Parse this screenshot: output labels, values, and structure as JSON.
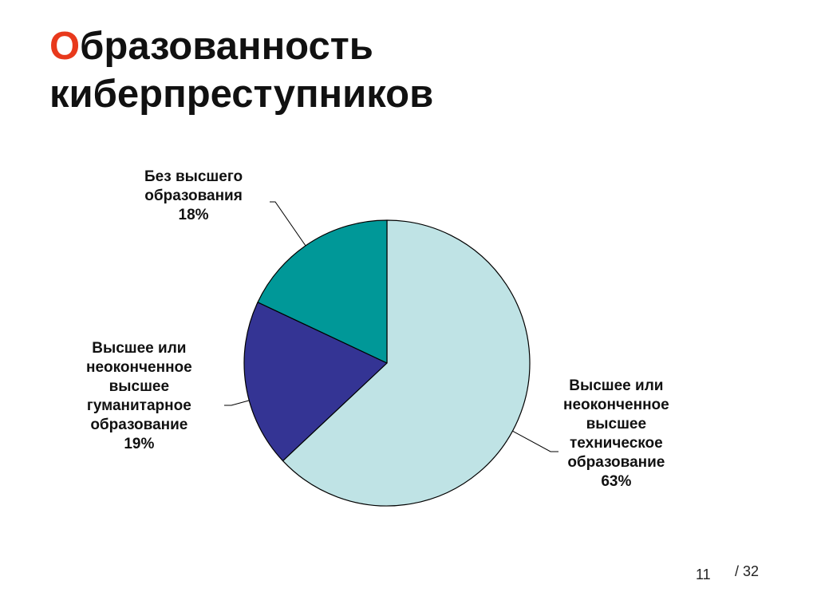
{
  "slide": {
    "title_first_letter": "О",
    "title_rest_line1": "бразованность",
    "title_line2": "киберпреступников",
    "number": "11",
    "total": "/ 32"
  },
  "chart_data": {
    "type": "pie",
    "title": "",
    "start_angle_deg": 0,
    "direction": "clockwise",
    "slices": [
      {
        "label_lines": [
          "Высшее или",
          "неоконченное",
          "высшее",
          "техническое",
          "образование"
        ],
        "value": 63,
        "value_label": "63%",
        "color": "#bfe3e5"
      },
      {
        "label_lines": [
          "Высшее или",
          "неоконченное",
          "высшее",
          "гуманитарное",
          "образование"
        ],
        "value": 19,
        "value_label": "19%",
        "color": "#343494"
      },
      {
        "label_lines": [
          "Без высшего",
          "образования"
        ],
        "value": 18,
        "value_label": "18%",
        "color": "#009898"
      }
    ]
  }
}
